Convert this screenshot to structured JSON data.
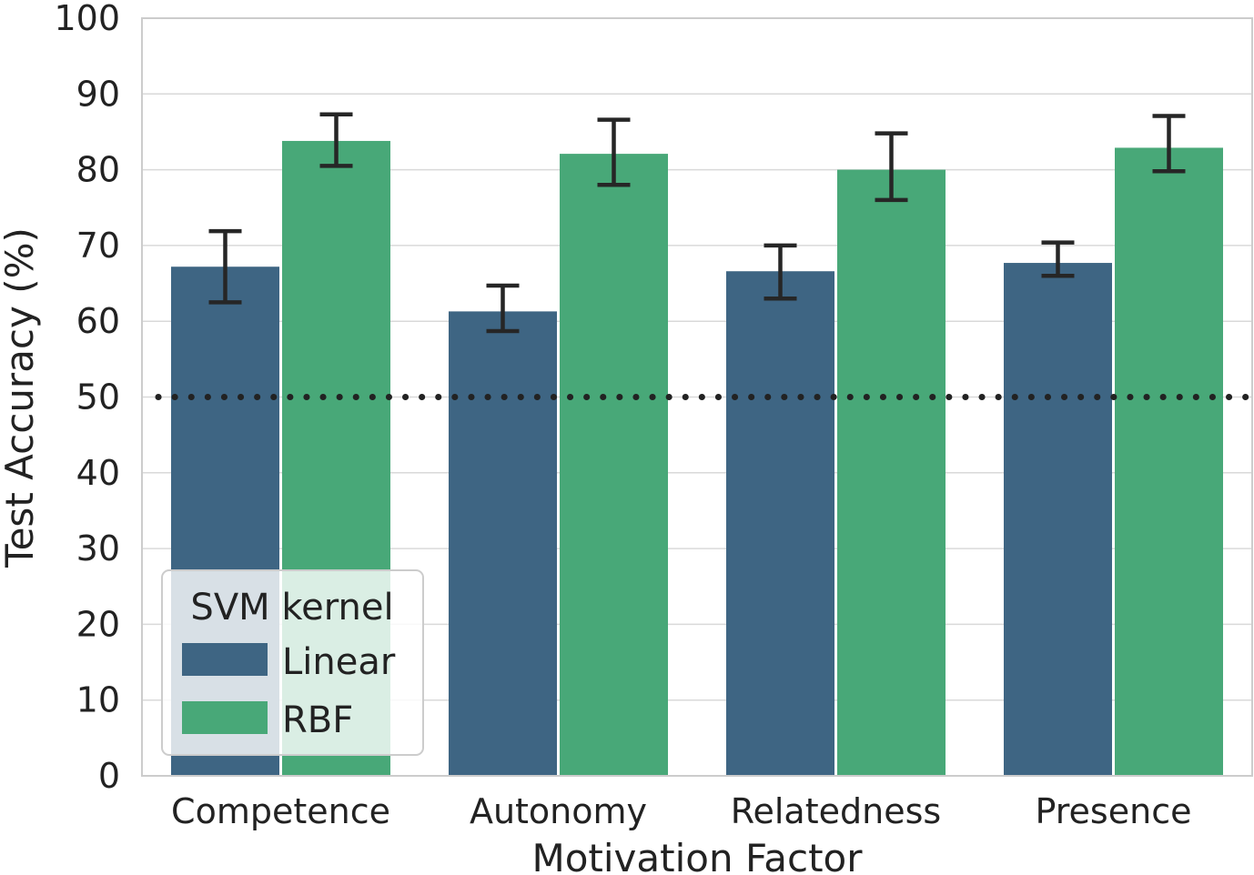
{
  "chart_data": {
    "type": "bar",
    "title": "",
    "xlabel": "Motivation Factor",
    "ylabel": "Test Accuracy (%)",
    "ylim": [
      0,
      100
    ],
    "yticks": [
      "0",
      "10",
      "20",
      "30",
      "40",
      "50",
      "60",
      "70",
      "80",
      "90",
      "100"
    ],
    "categories": [
      "Competence",
      "Autonomy",
      "Relatedness",
      "Presence"
    ],
    "series": [
      {
        "name": "Linear",
        "color": "#3e6583",
        "values": [
          67.2,
          61.3,
          66.6,
          67.7
        ],
        "error_low": [
          62.5,
          58.7,
          63.0,
          66.0
        ],
        "error_high": [
          71.9,
          64.7,
          70.0,
          70.4
        ]
      },
      {
        "name": "RBF",
        "color": "#48a878",
        "values": [
          83.8,
          82.1,
          80.0,
          82.9
        ],
        "error_low": [
          80.5,
          78.0,
          76.0,
          79.8
        ],
        "error_high": [
          87.3,
          86.6,
          84.8,
          87.1
        ]
      }
    ],
    "reference_line": {
      "y": 50,
      "style": "dotted",
      "color": "#222222"
    },
    "grid": true,
    "legend": {
      "title": "SVM kernel",
      "placement": "lower-left"
    }
  }
}
